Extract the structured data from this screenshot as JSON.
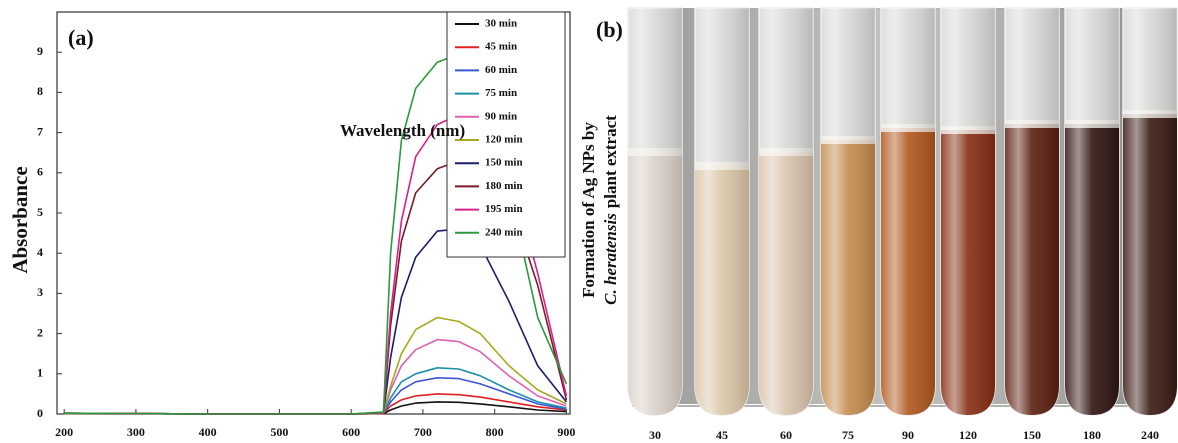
{
  "chart_data": [
    {
      "type": "line",
      "title": "(a)",
      "xlabel": "Wavelength (nm)",
      "ylabel": "Absorbance",
      "x": [
        200,
        300,
        400,
        500,
        600,
        645,
        655,
        670,
        690,
        720,
        750,
        780,
        820,
        860,
        900
      ],
      "xlim": [
        190,
        905
      ],
      "ylim": [
        0,
        10
      ],
      "xticks": [
        200,
        300,
        400,
        500,
        600,
        700,
        800,
        900
      ],
      "yticks": [
        0,
        1,
        2,
        3,
        4,
        5,
        6,
        7,
        8,
        9
      ],
      "legend": "upper right",
      "series": [
        {
          "name": "30 min",
          "color": "#111111",
          "values": [
            0.01,
            0.01,
            0,
            0,
            0,
            0.01,
            0.1,
            0.2,
            0.27,
            0.3,
            0.29,
            0.25,
            0.18,
            0.1,
            0.06
          ]
        },
        {
          "name": "45 min",
          "color": "#e02020",
          "values": [
            0.01,
            0.01,
            0,
            0,
            0,
            0.01,
            0.2,
            0.35,
            0.45,
            0.5,
            0.48,
            0.42,
            0.3,
            0.18,
            0.1
          ]
        },
        {
          "name": "60 min",
          "color": "#3a56d8",
          "values": [
            0.01,
            0.01,
            0,
            0,
            0,
            0.02,
            0.3,
            0.6,
            0.8,
            0.9,
            0.88,
            0.75,
            0.5,
            0.25,
            0.12
          ]
        },
        {
          "name": "75 min",
          "color": "#1a8fa8",
          "values": [
            0.01,
            0.01,
            0,
            0,
            0,
            0.02,
            0.4,
            0.8,
            1.0,
            1.15,
            1.12,
            0.95,
            0.6,
            0.3,
            0.15
          ]
        },
        {
          "name": "90 min",
          "color": "#e060b0",
          "values": [
            0.01,
            0,
            0,
            0,
            0,
            0.02,
            0.6,
            1.2,
            1.6,
            1.85,
            1.8,
            1.55,
            0.95,
            0.45,
            0.2
          ]
        },
        {
          "name": "120 min",
          "color": "#a8a820",
          "values": [
            0.01,
            0.01,
            0,
            0,
            0,
            0.02,
            0.7,
            1.5,
            2.1,
            2.4,
            2.3,
            2.0,
            1.2,
            0.6,
            0.25
          ]
        },
        {
          "name": "150 min",
          "color": "#1c1c70",
          "values": [
            0.02,
            0.01,
            0,
            0,
            0,
            0.03,
            1.4,
            2.9,
            3.9,
            4.55,
            4.6,
            4.2,
            2.8,
            1.2,
            0.3
          ]
        },
        {
          "name": "180 min",
          "color": "#7a1c28",
          "values": [
            0.02,
            0.01,
            0,
            0,
            0,
            0.04,
            2.2,
            4.3,
            5.5,
            6.1,
            6.3,
            6.2,
            5.4,
            3.2,
            0.35
          ]
        },
        {
          "name": "195 min",
          "color": "#d8208c",
          "values": [
            0.02,
            0.01,
            0,
            0,
            0,
            0.04,
            2.5,
            4.8,
            6.4,
            7.2,
            7.45,
            7.5,
            6.2,
            3.5,
            0.45
          ]
        },
        {
          "name": "240 min",
          "color": "#2a9a3a",
          "values": [
            0.02,
            0.01,
            0,
            0,
            0,
            0.05,
            4.0,
            6.8,
            8.1,
            8.75,
            8.95,
            8.7,
            5.6,
            2.4,
            0.75
          ]
        }
      ]
    },
    {
      "type": "image",
      "title": "(b)",
      "ylabel_line1": "Formation of Ag NPs by",
      "ylabel_italic": "C. heratensis",
      "ylabel_rest": "plant extract",
      "categories": [
        "30",
        "45",
        "60",
        "75",
        "90",
        "120",
        "150",
        "180",
        "240"
      ]
    }
  ]
}
